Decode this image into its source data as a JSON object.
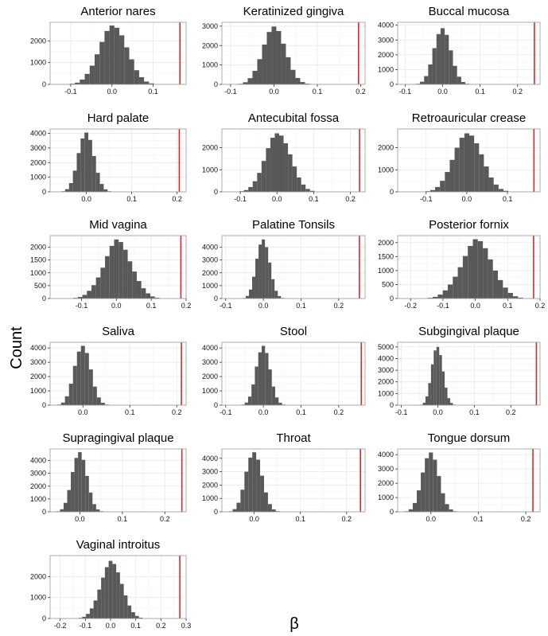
{
  "chart_data": {
    "type": "bar",
    "layout": "facet-grid",
    "xlabel": "β",
    "ylabel": "Count",
    "colors": {
      "bar": "#595959",
      "observed_line": "#d62a2a",
      "panel_border": "#9a9a9a",
      "grid": "#ebebeb"
    },
    "panels": [
      {
        "title": "Anterior nares",
        "xlim": [
          -0.15,
          0.18
        ],
        "ylim": [
          0,
          2850
        ],
        "xticks": [
          -0.1,
          0.0,
          0.1
        ],
        "xtick_labels": [
          "-0.1",
          "0.0",
          "0.1"
        ],
        "yticks": [
          0,
          1000,
          2000
        ],
        "observed": 0.165,
        "bin_width": 0.012,
        "bin_centers": [
          -0.096,
          -0.084,
          -0.072,
          -0.06,
          -0.048,
          -0.036,
          -0.024,
          -0.012,
          0.0,
          0.012,
          0.024,
          0.036,
          0.048,
          0.06,
          0.072,
          0.084,
          0.096
        ],
        "counts": [
          30,
          80,
          220,
          480,
          860,
          1380,
          1950,
          2450,
          2700,
          2600,
          2250,
          1700,
          1150,
          650,
          330,
          130,
          45
        ]
      },
      {
        "title": "Keratinized gingiva",
        "xlim": [
          -0.12,
          0.21
        ],
        "ylim": [
          0,
          3200
        ],
        "xticks": [
          -0.1,
          0.0,
          0.1,
          0.2
        ],
        "xtick_labels": [
          "-0.1",
          "0.0",
          "0.1",
          "0.2"
        ],
        "yticks": [
          0,
          1000,
          2000,
          3000
        ],
        "observed": 0.195,
        "bin_width": 0.011,
        "bin_centers": [
          -0.077,
          -0.066,
          -0.055,
          -0.044,
          -0.033,
          -0.022,
          -0.011,
          0.0,
          0.011,
          0.022,
          0.033,
          0.044,
          0.055,
          0.066,
          0.077
        ],
        "counts": [
          30,
          110,
          320,
          700,
          1300,
          2050,
          2700,
          2980,
          2750,
          2100,
          1400,
          750,
          330,
          120,
          35
        ]
      },
      {
        "title": "Buccal mucosa",
        "xlim": [
          -0.12,
          0.26
        ],
        "ylim": [
          0,
          4200
        ],
        "xticks": [
          -0.1,
          0.0,
          0.1,
          0.2
        ],
        "xtick_labels": [
          "-0.1",
          "0.0",
          "0.1",
          "0.2"
        ],
        "yticks": [
          0,
          1000,
          2000,
          3000,
          4000
        ],
        "observed": 0.245,
        "bin_width": 0.011,
        "bin_centers": [
          -0.066,
          -0.055,
          -0.044,
          -0.033,
          -0.022,
          -0.011,
          0.0,
          0.011,
          0.022,
          0.033,
          0.044,
          0.055,
          0.066
        ],
        "counts": [
          40,
          180,
          560,
          1350,
          2450,
          3400,
          3800,
          3350,
          2300,
          1250,
          520,
          160,
          40
        ]
      },
      {
        "title": "Hard palate",
        "xlim": [
          -0.08,
          0.22
        ],
        "ylim": [
          0,
          4300
        ],
        "xticks": [
          0.0,
          0.1,
          0.2
        ],
        "xtick_labels": [
          "0.0",
          "0.1",
          "0.2"
        ],
        "yticks": [
          0,
          1000,
          2000,
          3000,
          4000
        ],
        "observed": 0.205,
        "bin_width": 0.0085,
        "bin_centers": [
          -0.051,
          -0.0425,
          -0.034,
          -0.0255,
          -0.017,
          -0.0085,
          0.0,
          0.0085,
          0.017,
          0.0255,
          0.034,
          0.0425,
          0.051
        ],
        "counts": [
          40,
          180,
          600,
          1450,
          2650,
          3650,
          4050,
          3550,
          2450,
          1300,
          540,
          170,
          40
        ]
      },
      {
        "title": "Antecubital fossa",
        "xlim": [
          -0.15,
          0.24
        ],
        "ylim": [
          0,
          2850
        ],
        "xticks": [
          -0.1,
          0.0,
          0.1,
          0.2
        ],
        "xtick_labels": [
          "-0.1",
          "0.0",
          "0.1",
          "0.2"
        ],
        "yticks": [
          0,
          1000,
          2000
        ],
        "observed": 0.225,
        "bin_width": 0.012,
        "bin_centers": [
          -0.096,
          -0.084,
          -0.072,
          -0.06,
          -0.048,
          -0.036,
          -0.024,
          -0.012,
          0.0,
          0.012,
          0.024,
          0.036,
          0.048,
          0.06,
          0.072,
          0.084,
          0.096
        ],
        "counts": [
          30,
          80,
          220,
          480,
          860,
          1400,
          1980,
          2450,
          2650,
          2550,
          2200,
          1700,
          1150,
          650,
          330,
          130,
          45
        ]
      },
      {
        "title": "Retroauricular crease",
        "xlim": [
          -0.17,
          0.18
        ],
        "ylim": [
          0,
          2850
        ],
        "xticks": [
          -0.1,
          0.0,
          0.1
        ],
        "xtick_labels": [
          "-0.1",
          "0.0",
          "0.1"
        ],
        "yticks": [
          0,
          1000,
          2000
        ],
        "observed": 0.165,
        "bin_width": 0.012,
        "bin_centers": [
          -0.096,
          -0.084,
          -0.072,
          -0.06,
          -0.048,
          -0.036,
          -0.024,
          -0.012,
          0.0,
          0.012,
          0.024,
          0.036,
          0.048,
          0.06,
          0.072,
          0.084,
          0.096
        ],
        "counts": [
          30,
          80,
          220,
          500,
          900,
          1450,
          2000,
          2450,
          2650,
          2550,
          2200,
          1700,
          1150,
          650,
          330,
          130,
          45
        ]
      },
      {
        "title": "Mid vagina",
        "xlim": [
          -0.19,
          0.2
        ],
        "ylim": [
          0,
          2450
        ],
        "xticks": [
          -0.1,
          0.0,
          0.1,
          0.2
        ],
        "xtick_labels": [
          "-0.1",
          "0.0",
          "0.1",
          "0.2"
        ],
        "yticks": [
          0,
          500,
          1000,
          1500,
          2000
        ],
        "observed": 0.185,
        "bin_width": 0.013,
        "bin_centers": [
          -0.117,
          -0.104,
          -0.091,
          -0.078,
          -0.065,
          -0.052,
          -0.039,
          -0.026,
          -0.013,
          0.0,
          0.013,
          0.026,
          0.039,
          0.052,
          0.065,
          0.078,
          0.091,
          0.104,
          0.117
        ],
        "counts": [
          25,
          60,
          140,
          300,
          520,
          820,
          1200,
          1650,
          2050,
          2300,
          2200,
          1900,
          1450,
          1050,
          680,
          400,
          200,
          80,
          30
        ]
      },
      {
        "title": "Palatine Tonsils",
        "xlim": [
          -0.11,
          0.27
        ],
        "ylim": [
          0,
          4900
        ],
        "xticks": [
          -0.1,
          0.0,
          0.1,
          0.2
        ],
        "xtick_labels": [
          "-0.1",
          "0.0",
          "0.1",
          "0.2"
        ],
        "yticks": [
          0,
          1000,
          2000,
          3000,
          4000
        ],
        "observed": 0.255,
        "bin_width": 0.0085,
        "bin_centers": [
          -0.051,
          -0.0425,
          -0.034,
          -0.0255,
          -0.017,
          -0.0085,
          0.0,
          0.0085,
          0.017,
          0.0255,
          0.034,
          0.0425,
          0.051
        ],
        "counts": [
          40,
          200,
          700,
          1700,
          3100,
          4200,
          4600,
          4000,
          2800,
          1500,
          600,
          190,
          45
        ]
      },
      {
        "title": "Posterior fornix",
        "xlim": [
          -0.24,
          0.2
        ],
        "ylim": [
          0,
          2250
        ],
        "xticks": [
          -0.2,
          -0.1,
          0.0,
          0.1,
          0.2
        ],
        "xtick_labels": [
          "-0.2",
          "-0.1",
          "0.0",
          "0.1",
          "0.2"
        ],
        "yticks": [
          0,
          500,
          1000,
          1500,
          2000
        ],
        "observed": 0.18,
        "bin_width": 0.0155,
        "bin_centers": [
          -0.1395,
          -0.124,
          -0.1085,
          -0.093,
          -0.0775,
          -0.062,
          -0.0465,
          -0.031,
          -0.0155,
          0.0,
          0.0155,
          0.031,
          0.0465,
          0.062,
          0.0775,
          0.093,
          0.1085,
          0.124,
          0.1395
        ],
        "counts": [
          25,
          60,
          140,
          290,
          500,
          780,
          1120,
          1520,
          1880,
          2120,
          2050,
          1800,
          1400,
          1000,
          660,
          390,
          200,
          80,
          30
        ]
      },
      {
        "title": "Saliva",
        "xlim": [
          -0.07,
          0.22
        ],
        "ylim": [
          0,
          4400
        ],
        "xticks": [
          0.0,
          0.1,
          0.2
        ],
        "xtick_labels": [
          "0.0",
          "0.1",
          "0.2"
        ],
        "yticks": [
          0,
          1000,
          2000,
          3000,
          4000
        ],
        "observed": 0.21,
        "bin_width": 0.0085,
        "bin_centers": [
          -0.051,
          -0.0425,
          -0.034,
          -0.0255,
          -0.017,
          -0.0085,
          0.0,
          0.0085,
          0.017,
          0.0255,
          0.034,
          0.0425,
          0.051
        ],
        "counts": [
          40,
          180,
          620,
          1500,
          2750,
          3750,
          4150,
          3650,
          2500,
          1300,
          540,
          170,
          40
        ]
      },
      {
        "title": "Stool",
        "xlim": [
          -0.11,
          0.27
        ],
        "ylim": [
          0,
          4400
        ],
        "xticks": [
          -0.1,
          0.0,
          0.1,
          0.2
        ],
        "xtick_labels": [
          "-0.1",
          "0.0",
          "0.1",
          "0.2"
        ],
        "yticks": [
          0,
          1000,
          2000,
          3000,
          4000
        ],
        "observed": 0.26,
        "bin_width": 0.009,
        "bin_centers": [
          -0.054,
          -0.045,
          -0.036,
          -0.027,
          -0.018,
          -0.009,
          0.0,
          0.009,
          0.018,
          0.027,
          0.036,
          0.045,
          0.054
        ],
        "counts": [
          40,
          180,
          600,
          1450,
          2700,
          3700,
          4150,
          3650,
          2500,
          1300,
          540,
          170,
          40
        ]
      },
      {
        "title": "Subgingival plaque",
        "xlim": [
          -0.11,
          0.28
        ],
        "ylim": [
          0,
          5400
        ],
        "xticks": [
          -0.1,
          0.0,
          0.1,
          0.2
        ],
        "xtick_labels": [
          "-0.1",
          "0.0",
          "0.1",
          "0.2"
        ],
        "yticks": [
          0,
          1000,
          2000,
          3000,
          4000,
          5000
        ],
        "observed": 0.27,
        "bin_width": 0.0075,
        "bin_centers": [
          -0.045,
          -0.0375,
          -0.03,
          -0.0225,
          -0.015,
          -0.0075,
          0.0,
          0.0075,
          0.015,
          0.0225,
          0.03,
          0.0375,
          0.045
        ],
        "counts": [
          40,
          200,
          750,
          1900,
          3500,
          4700,
          5000,
          4300,
          2900,
          1500,
          600,
          190,
          45
        ]
      },
      {
        "title": "Supragingival plaque",
        "xlim": [
          -0.07,
          0.25
        ],
        "ylim": [
          0,
          4900
        ],
        "xticks": [
          0.0,
          0.1,
          0.2
        ],
        "xtick_labels": [
          "0.0",
          "0.1",
          "0.2"
        ],
        "yticks": [
          0,
          1000,
          2000,
          3000,
          4000
        ],
        "observed": 0.24,
        "bin_width": 0.0085,
        "bin_centers": [
          -0.051,
          -0.0425,
          -0.034,
          -0.0255,
          -0.017,
          -0.0085,
          0.0,
          0.0085,
          0.017,
          0.0255,
          0.034,
          0.0425,
          0.051
        ],
        "counts": [
          40,
          200,
          700,
          1700,
          3100,
          4200,
          4650,
          4050,
          2800,
          1500,
          600,
          190,
          45
        ]
      },
      {
        "title": "Throat",
        "xlim": [
          -0.07,
          0.24
        ],
        "ylim": [
          0,
          4700
        ],
        "xticks": [
          0.0,
          0.1,
          0.2
        ],
        "xtick_labels": [
          "0.0",
          "0.1",
          "0.2"
        ],
        "yticks": [
          0,
          1000,
          2000,
          3000,
          4000
        ],
        "observed": 0.23,
        "bin_width": 0.0085,
        "bin_centers": [
          -0.051,
          -0.0425,
          -0.034,
          -0.0255,
          -0.017,
          -0.0085,
          0.0,
          0.0085,
          0.017,
          0.0255,
          0.034,
          0.0425,
          0.051
        ],
        "counts": [
          40,
          200,
          680,
          1650,
          3000,
          4050,
          4450,
          3900,
          2700,
          1450,
          580,
          180,
          45
        ]
      },
      {
        "title": "Tongue dorsum",
        "xlim": [
          -0.07,
          0.23
        ],
        "ylim": [
          0,
          4400
        ],
        "xticks": [
          0.0,
          0.1,
          0.2
        ],
        "xtick_labels": [
          "0.0",
          "0.1",
          "0.2"
        ],
        "yticks": [
          0,
          1000,
          2000,
          3000,
          4000
        ],
        "observed": 0.215,
        "bin_width": 0.0085,
        "bin_centers": [
          -0.051,
          -0.0425,
          -0.034,
          -0.0255,
          -0.017,
          -0.0085,
          0.0,
          0.0085,
          0.017,
          0.0255,
          0.034,
          0.0425,
          0.051
        ],
        "counts": [
          40,
          180,
          620,
          1500,
          2750,
          3750,
          4150,
          3650,
          2500,
          1300,
          540,
          170,
          40
        ]
      },
      {
        "title": "Vaginal introitus",
        "xlim": [
          -0.24,
          0.3
        ],
        "ylim": [
          0,
          3000
        ],
        "xticks": [
          -0.2,
          -0.1,
          0.0,
          0.1,
          0.2,
          0.3
        ],
        "xtick_labels": [
          "-0.2",
          "-0.1",
          "0.0",
          "0.1",
          "0.2",
          "0.3"
        ],
        "yticks": [
          0,
          1000,
          2000
        ],
        "observed": 0.275,
        "bin_width": 0.015,
        "bin_centers": [
          -0.12,
          -0.105,
          -0.09,
          -0.075,
          -0.06,
          -0.045,
          -0.03,
          -0.015,
          0.0,
          0.015,
          0.03,
          0.045,
          0.06,
          0.075,
          0.09,
          0.105,
          0.12
        ],
        "counts": [
          30,
          80,
          220,
          480,
          860,
          1380,
          1950,
          2450,
          2750,
          2600,
          2200,
          1650,
          1100,
          620,
          300,
          120,
          40
        ]
      }
    ]
  }
}
